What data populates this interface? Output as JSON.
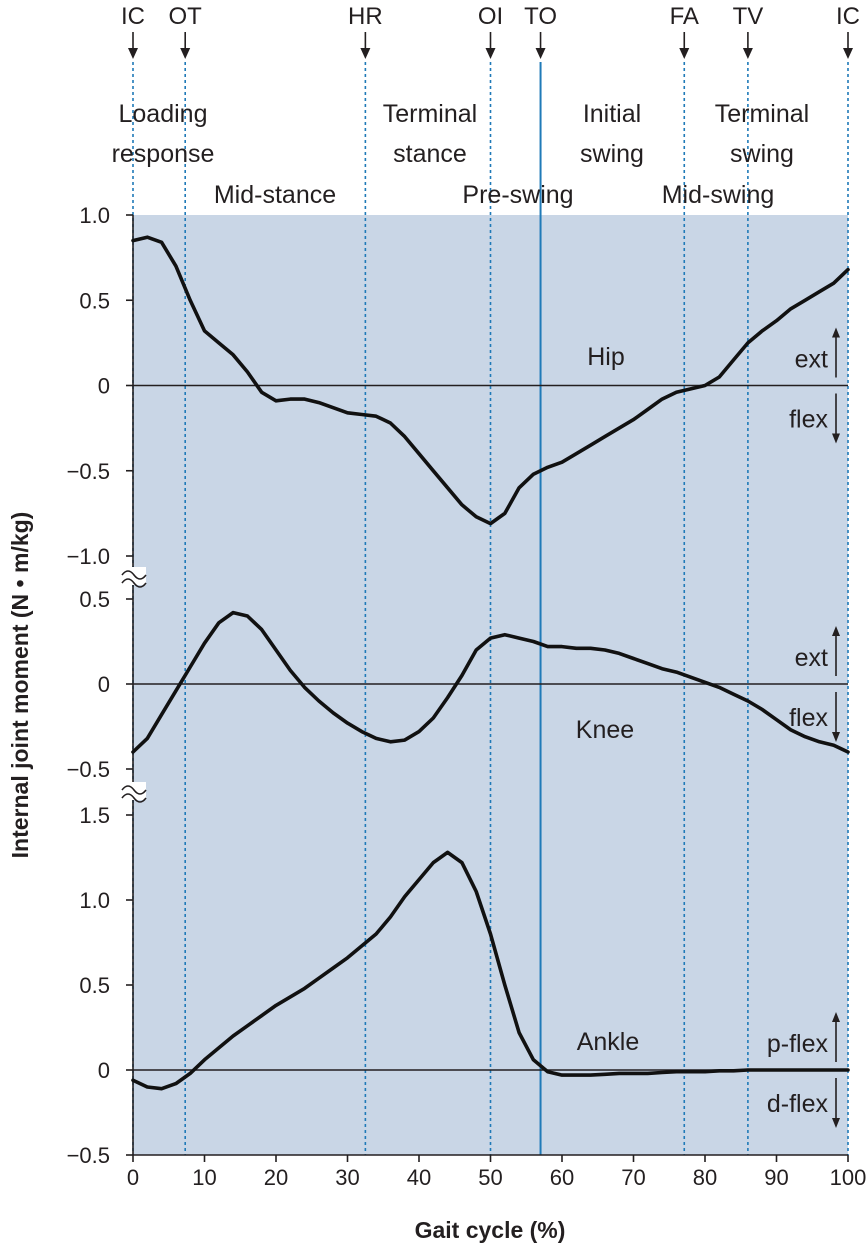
{
  "colors": {
    "plot_background": "#c9d6e6",
    "curve": "#111111",
    "event_line": "#1f7ab8",
    "toe_off_line": "#1f7ab8"
  },
  "chart_data": {
    "type": "line",
    "xlabel": "Gait cycle (%)",
    "ylabel": "Internal joint moment (N • m/kg)",
    "xlim": [
      0,
      100
    ],
    "xticks": [
      "0",
      "10",
      "20",
      "30",
      "40",
      "50",
      "60",
      "70",
      "80",
      "90",
      "100"
    ],
    "grid": false,
    "events": [
      {
        "label": "IC",
        "x": 0,
        "style": "dotted"
      },
      {
        "label": "OT",
        "x": 7.3,
        "style": "dotted"
      },
      {
        "label": "HR",
        "x": 32.5,
        "style": "dotted"
      },
      {
        "label": "OI",
        "x": 50,
        "style": "dotted"
      },
      {
        "label": "TO",
        "x": 57,
        "style": "solid"
      },
      {
        "label": "FA",
        "x": 77.1,
        "style": "dotted"
      },
      {
        "label": "TV",
        "x": 86,
        "style": "dotted"
      },
      {
        "label": "IC",
        "x": 100,
        "style": "dotted"
      }
    ],
    "phases": [
      {
        "label": "Loading response",
        "lines": [
          "Loading",
          "response"
        ]
      },
      {
        "label": "Mid-stance",
        "lines": [
          "Mid-stance"
        ]
      },
      {
        "label": "Terminal stance",
        "lines": [
          "Terminal",
          "stance"
        ]
      },
      {
        "label": "Pre-swing",
        "lines": [
          "Pre-swing"
        ]
      },
      {
        "label": "Initial swing",
        "lines": [
          "Initial",
          "swing"
        ]
      },
      {
        "label": "Mid-swing",
        "lines": [
          "Mid-swing"
        ]
      },
      {
        "label": "Terminal swing",
        "lines": [
          "Terminal",
          "swing"
        ]
      }
    ],
    "panels": [
      {
        "name": "Hip",
        "ylim": [
          -1.0,
          1.0
        ],
        "yticks": [
          "1.0",
          "0.5",
          "0",
          "−0.5",
          "−1.0"
        ],
        "up_label": "ext",
        "down_label": "flex",
        "x": [
          0,
          2,
          4,
          6,
          8,
          10,
          12,
          14,
          16,
          18,
          20,
          22,
          24,
          26,
          28,
          30,
          32,
          34,
          36,
          38,
          40,
          42,
          44,
          46,
          48,
          50,
          52,
          54,
          56,
          58,
          60,
          62,
          64,
          66,
          68,
          70,
          72,
          74,
          76,
          78,
          80,
          82,
          84,
          86,
          88,
          90,
          92,
          94,
          96,
          98,
          100
        ],
        "y": [
          0.85,
          0.87,
          0.84,
          0.7,
          0.5,
          0.32,
          0.25,
          0.18,
          0.08,
          -0.04,
          -0.09,
          -0.08,
          -0.08,
          -0.1,
          -0.13,
          -0.16,
          -0.17,
          -0.18,
          -0.22,
          -0.3,
          -0.4,
          -0.5,
          -0.6,
          -0.7,
          -0.77,
          -0.81,
          -0.75,
          -0.6,
          -0.52,
          -0.48,
          -0.45,
          -0.4,
          -0.35,
          -0.3,
          -0.25,
          -0.2,
          -0.14,
          -0.08,
          -0.04,
          -0.02,
          0.0,
          0.05,
          0.15,
          0.25,
          0.32,
          0.38,
          0.45,
          0.5,
          0.55,
          0.6,
          0.68
        ]
      },
      {
        "name": "Knee",
        "ylim": [
          -0.5,
          0.5
        ],
        "yticks": [
          "0.5",
          "0",
          "−0.5"
        ],
        "up_label": "ext",
        "down_label": "flex",
        "x": [
          0,
          2,
          4,
          6,
          8,
          10,
          12,
          14,
          16,
          18,
          20,
          22,
          24,
          26,
          28,
          30,
          32,
          34,
          36,
          38,
          40,
          42,
          44,
          46,
          48,
          50,
          52,
          54,
          56,
          58,
          60,
          62,
          64,
          66,
          68,
          70,
          72,
          74,
          76,
          78,
          80,
          82,
          84,
          86,
          88,
          90,
          92,
          94,
          96,
          98,
          100
        ],
        "y": [
          -0.4,
          -0.32,
          -0.18,
          -0.04,
          0.1,
          0.24,
          0.36,
          0.42,
          0.4,
          0.32,
          0.2,
          0.08,
          -0.02,
          -0.1,
          -0.17,
          -0.23,
          -0.28,
          -0.32,
          -0.34,
          -0.33,
          -0.28,
          -0.2,
          -0.08,
          0.05,
          0.2,
          0.27,
          0.29,
          0.27,
          0.25,
          0.22,
          0.22,
          0.21,
          0.21,
          0.2,
          0.18,
          0.15,
          0.12,
          0.09,
          0.07,
          0.04,
          0.01,
          -0.02,
          -0.06,
          -0.1,
          -0.15,
          -0.21,
          -0.27,
          -0.31,
          -0.34,
          -0.36,
          -0.4
        ]
      },
      {
        "name": "Ankle",
        "ylim": [
          -0.5,
          1.5
        ],
        "yticks": [
          "1.5",
          "1.0",
          "0.5",
          "0",
          "−0.5"
        ],
        "up_label": "p-flex",
        "down_label": "d-flex",
        "x": [
          0,
          2,
          4,
          6,
          8,
          10,
          12,
          14,
          16,
          18,
          20,
          22,
          24,
          26,
          28,
          30,
          32,
          34,
          36,
          38,
          40,
          42,
          44,
          46,
          48,
          50,
          52,
          54,
          56,
          58,
          60,
          62,
          64,
          66,
          68,
          70,
          72,
          74,
          76,
          78,
          80,
          82,
          84,
          86,
          88,
          90,
          92,
          94,
          96,
          98,
          100
        ],
        "y": [
          -0.06,
          -0.1,
          -0.11,
          -0.08,
          -0.02,
          0.06,
          0.13,
          0.2,
          0.26,
          0.32,
          0.38,
          0.43,
          0.48,
          0.54,
          0.6,
          0.66,
          0.73,
          0.8,
          0.9,
          1.02,
          1.12,
          1.22,
          1.28,
          1.22,
          1.05,
          0.8,
          0.5,
          0.22,
          0.06,
          -0.01,
          -0.03,
          -0.03,
          -0.03,
          -0.025,
          -0.02,
          -0.02,
          -0.02,
          -0.015,
          -0.01,
          -0.01,
          -0.01,
          -0.005,
          -0.005,
          0.0,
          0.0,
          0.0,
          0.0,
          0.0,
          0.0,
          0.0,
          0.0
        ]
      }
    ]
  }
}
